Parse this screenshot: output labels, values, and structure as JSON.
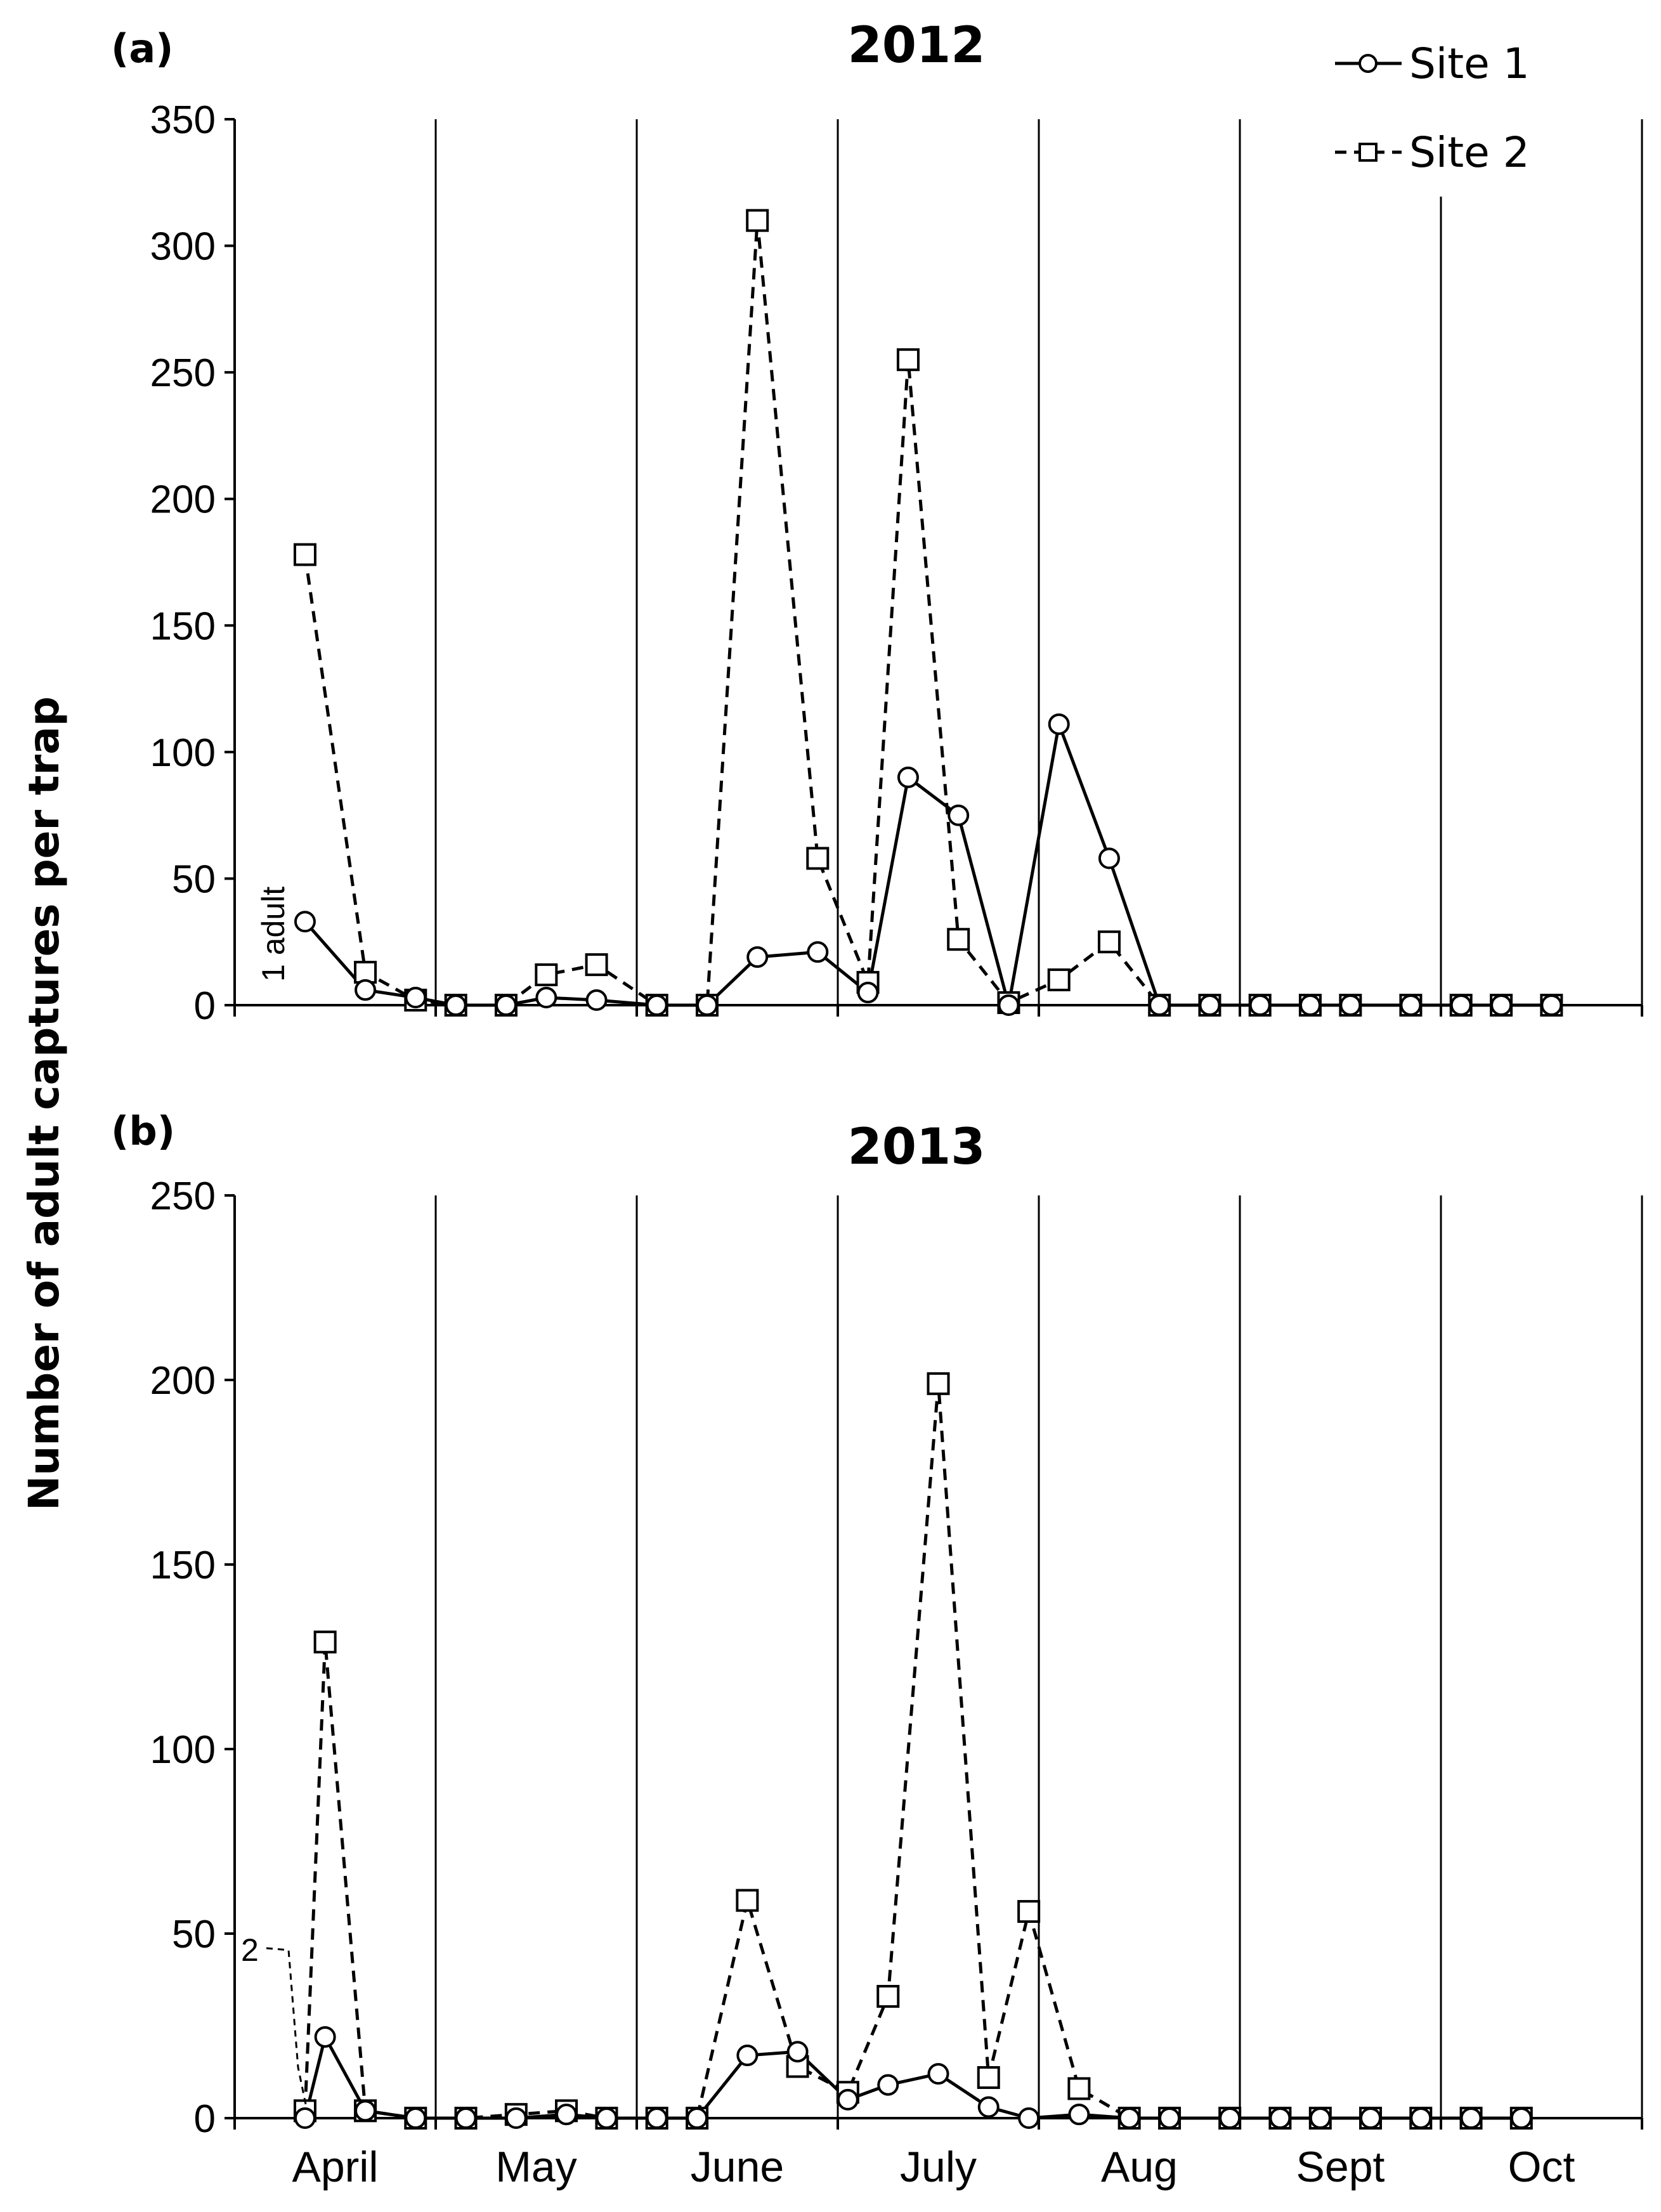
{
  "ylabel": "Number of adult captures per trap",
  "legend": [
    {
      "name": "Site 1",
      "line": "solid",
      "marker": "circle"
    },
    {
      "name": "Site 2",
      "line": "dashed",
      "marker": "square"
    }
  ],
  "months": [
    "April",
    "May",
    "June",
    "July",
    "Aug",
    "Sept",
    "Oct"
  ],
  "chart_data": [
    {
      "type": "line",
      "panel_label": "(a)",
      "title": "2012",
      "ylim": [
        0,
        350
      ],
      "yticks": [
        "0",
        "50",
        "100",
        "150",
        "200",
        "250",
        "300",
        "350"
      ],
      "annotation": "1 adult",
      "x_months": [
        0.35,
        0.65,
        0.9,
        1.1,
        1.35,
        1.55,
        1.8,
        2.1,
        2.35,
        2.6,
        2.9,
        3.15,
        3.35,
        3.6,
        3.85,
        4.1,
        4.35,
        4.6,
        4.85,
        5.1,
        5.35,
        5.55,
        5.85,
        6.1,
        6.3,
        6.55
      ],
      "series": [
        {
          "name": "Site 1",
          "values": [
            33,
            6,
            3,
            0,
            0,
            3,
            2,
            0,
            0,
            19,
            21,
            5,
            90,
            75,
            0,
            111,
            58,
            0,
            0,
            0,
            0,
            0,
            0,
            0,
            0,
            0
          ]
        },
        {
          "name": "Site 2",
          "values": [
            178,
            13,
            2,
            0,
            0,
            12,
            16,
            0,
            0,
            310,
            58,
            9,
            255,
            26,
            1,
            10,
            25,
            0,
            0,
            0,
            0,
            0,
            0,
            0,
            0,
            0
          ]
        }
      ]
    },
    {
      "type": "line",
      "panel_label": "(b)",
      "title": "2013",
      "ylim": [
        0,
        250
      ],
      "yticks": [
        "0",
        "50",
        "100",
        "150",
        "200",
        "250"
      ],
      "annotation": "2",
      "x_months": [
        0.35,
        0.45,
        0.65,
        0.9,
        1.15,
        1.4,
        1.65,
        1.85,
        2.1,
        2.3,
        2.55,
        2.8,
        3.05,
        3.25,
        3.5,
        3.75,
        3.95,
        4.2,
        4.45,
        4.65,
        4.95,
        5.2,
        5.4,
        5.65,
        5.9,
        6.15,
        6.4
      ],
      "series": [
        {
          "name": "Site 1",
          "values": [
            0,
            22,
            2,
            0,
            0,
            0,
            1,
            0,
            0,
            0,
            17,
            18,
            5,
            9,
            12,
            3,
            0,
            1,
            0,
            0,
            0,
            0,
            0,
            0,
            0,
            0,
            0
          ]
        },
        {
          "name": "Site 2",
          "values": [
            2,
            129,
            2,
            0,
            0,
            1,
            2,
            0,
            0,
            0,
            59,
            14,
            7,
            33,
            199,
            11,
            56,
            8,
            0,
            0,
            0,
            0,
            0,
            0,
            0,
            0,
            0
          ]
        }
      ]
    }
  ]
}
